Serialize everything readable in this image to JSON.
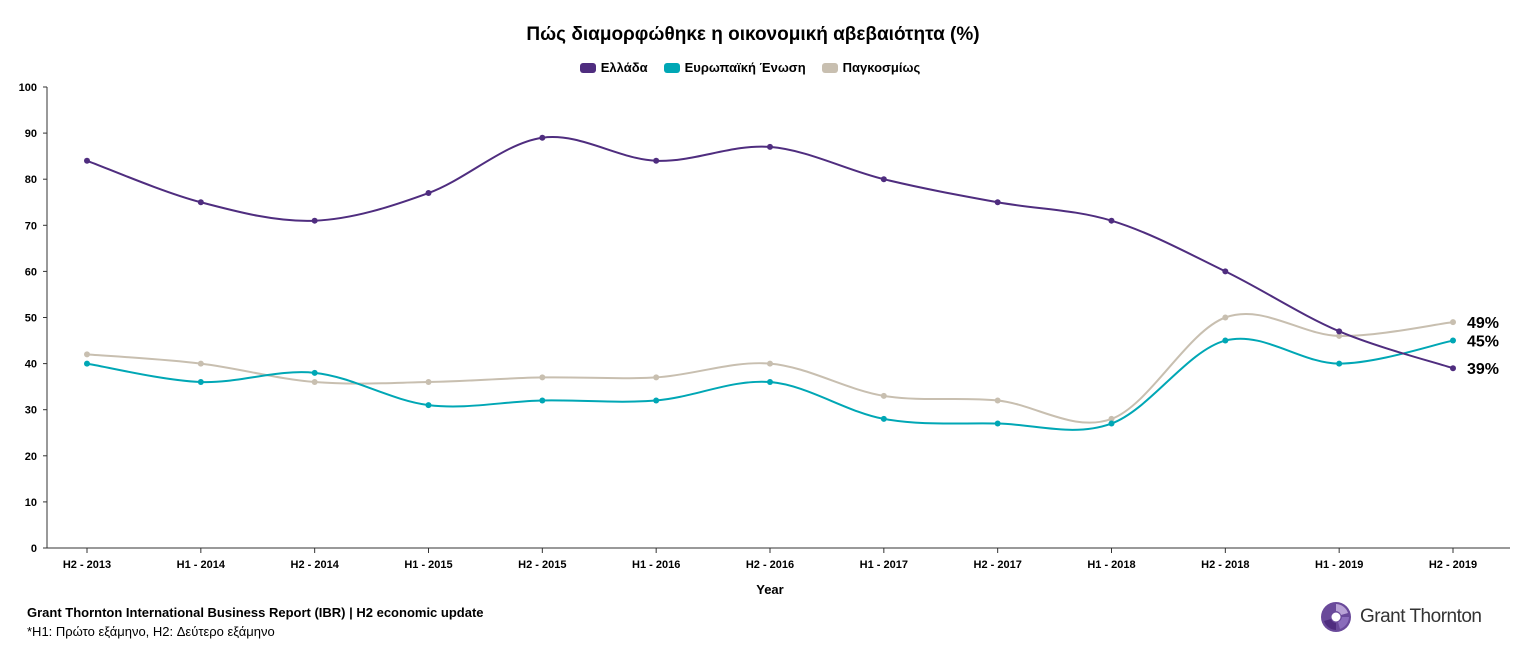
{
  "chart_data": {
    "type": "line",
    "title": "Πώς διαμορφώθηκε η οικονομική αβεβαιότητα (%)",
    "xlabel": "Year",
    "ylabel": "",
    "ylim": [
      0,
      100
    ],
    "yticks": [
      0,
      10,
      20,
      30,
      40,
      50,
      60,
      70,
      80,
      90,
      100
    ],
    "grid": false,
    "legend": "top",
    "categories": [
      "H2 - 2013",
      "H1 - 2014",
      "H2 - 2014",
      "H1 - 2015",
      "H2 - 2015",
      "H1 - 2016",
      "H2 - 2016",
      "H1 - 2017",
      "H2 - 2017",
      "H1 - 2018",
      "H2 - 2018",
      "H1 - 2019",
      "H2 - 2019"
    ],
    "series": [
      {
        "name": "Ελλάδα",
        "color": "#4f2d7f",
        "values": [
          84,
          75,
          71,
          77,
          89,
          84,
          87,
          80,
          75,
          71,
          60,
          47,
          39
        ],
        "end_label": "39%"
      },
      {
        "name": "Ευρωπαϊκή Ένωση",
        "color": "#00a7b5",
        "values": [
          40,
          36,
          38,
          31,
          32,
          32,
          36,
          28,
          27,
          27,
          45,
          40,
          45
        ],
        "end_label": "45%"
      },
      {
        "name": "Παγκοσμίως",
        "color": "#c8bfb0",
        "values": [
          42,
          40,
          36,
          36,
          37,
          37,
          40,
          33,
          32,
          28,
          50,
          46,
          49
        ],
        "end_label": "49%"
      }
    ]
  },
  "footer": {
    "source": "Grant Thornton International Business Report (IBR) | H2 economic update",
    "note": "*H1: Πρώτο εξάμηνο, H2: Δεύτερο εξάμηνο"
  },
  "logo": {
    "text": "Grant Thornton",
    "icon": "grant-thornton-swirl-icon"
  }
}
